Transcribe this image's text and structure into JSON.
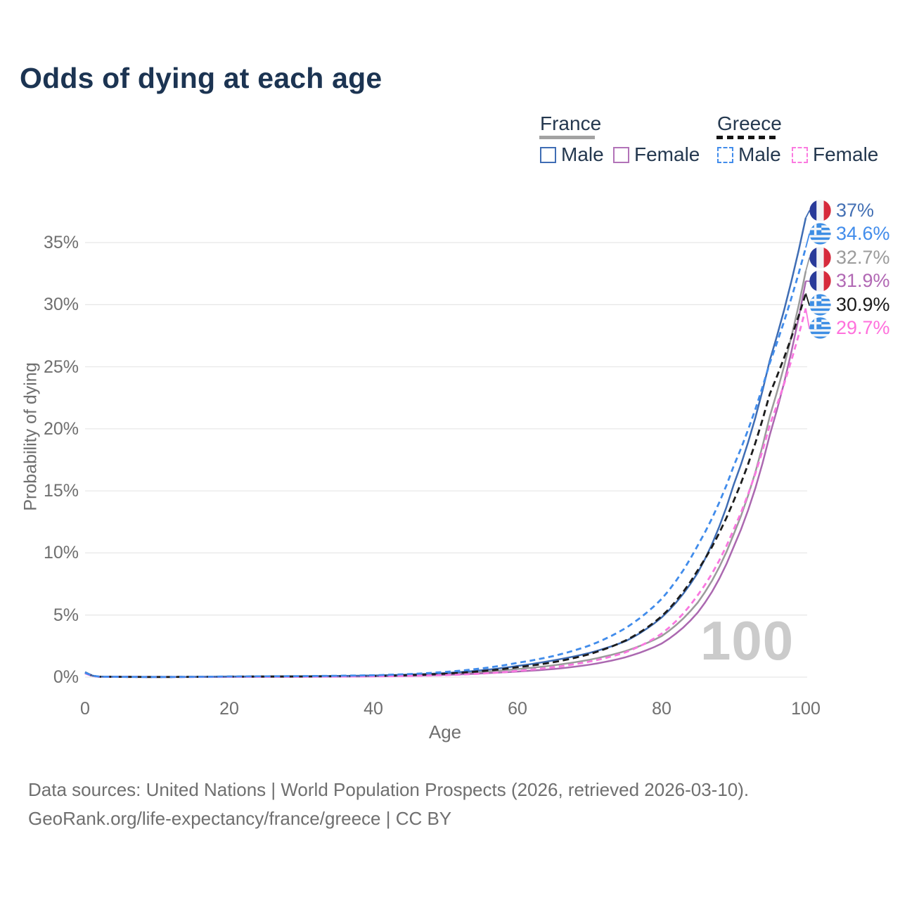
{
  "title": "Odds of dying at each age",
  "legend": {
    "groups": [
      {
        "label": "France",
        "line_style": "solid",
        "underline_color": "#a2a2a2",
        "items": [
          {
            "label": "Male",
            "color": "#3f6db4"
          },
          {
            "label": "Female",
            "color": "#b273b8"
          }
        ]
      },
      {
        "label": "Greece",
        "line_style": "dashed",
        "underline_color": "#141414",
        "items": [
          {
            "label": "Male",
            "color": "#418ceb"
          },
          {
            "label": "Female",
            "color": "#fb7ae0"
          }
        ]
      }
    ]
  },
  "chart": {
    "ylabel": "Probability of dying",
    "xlabel": "Age",
    "y_ticks": [
      "0%",
      "5%",
      "10%",
      "15%",
      "20%",
      "25%",
      "30%",
      "35%"
    ],
    "x_ticks": [
      "0",
      "20",
      "40",
      "60",
      "80",
      "100"
    ],
    "watermark": "100"
  },
  "chart_data": {
    "type": "line",
    "title": "Odds of dying at each age",
    "xlabel": "Age",
    "ylabel": "Probability of dying",
    "x_range": [
      0,
      100
    ],
    "y_range_percent": [
      0,
      35
    ],
    "y_gridlines_percent": [
      0,
      5,
      10,
      15,
      20,
      25,
      30,
      35
    ],
    "x_tick_ages": [
      0,
      20,
      40,
      60,
      80,
      100
    ],
    "grid": true,
    "legend_position": "top-right",
    "ages": [
      0,
      2,
      10,
      20,
      30,
      40,
      50,
      55,
      60,
      65,
      70,
      75,
      80,
      85,
      90,
      95,
      100
    ],
    "series": [
      {
        "id": "france-male",
        "name": "France — Male",
        "country": "France",
        "sex": "Male",
        "color": "#3f6db4",
        "label_color": "#4470b4",
        "dash": null,
        "end_label": "37%",
        "end_value_percent": 37.0,
        "values_percent": [
          0.4,
          0.04,
          0.01,
          0.05,
          0.07,
          0.13,
          0.33,
          0.55,
          0.9,
          1.35,
          1.95,
          2.9,
          4.8,
          8.4,
          15.5,
          25.5,
          37.0
        ]
      },
      {
        "id": "greece-male",
        "name": "Greece — Male",
        "country": "Greece",
        "sex": "Male",
        "color": "#418ceb",
        "label_color": "#418ceb",
        "dash": "8 5.5",
        "end_label": "34.6%",
        "end_value_percent": 34.6,
        "values_percent": [
          0.35,
          0.035,
          0.01,
          0.05,
          0.08,
          0.15,
          0.42,
          0.7,
          1.15,
          1.7,
          2.55,
          3.95,
          6.3,
          10.6,
          17.0,
          25.3,
          34.6
        ]
      },
      {
        "id": "france-total",
        "name": "France — Both sexes",
        "country": "France",
        "sex": "Both",
        "color": "#9b9b9b",
        "label_color": "#9b9b9b",
        "dash": null,
        "end_label": "32.7%",
        "end_value_percent": 32.7,
        "values_percent": [
          0.37,
          0.035,
          0.01,
          0.04,
          0.05,
          0.1,
          0.26,
          0.42,
          0.65,
          0.95,
          1.4,
          2.1,
          3.3,
          6.0,
          11.5,
          21.0,
          32.7
        ]
      },
      {
        "id": "france-female",
        "name": "France — Female",
        "country": "France",
        "sex": "Female",
        "color": "#ab68b0",
        "label_color": "#b168b4",
        "dash": null,
        "end_label": "31.9%",
        "end_value_percent": 31.9,
        "values_percent": [
          0.33,
          0.03,
          0.01,
          0.02,
          0.03,
          0.06,
          0.18,
          0.3,
          0.45,
          0.65,
          1.0,
          1.6,
          2.7,
          5.2,
          10.5,
          19.5,
          31.9
        ]
      },
      {
        "id": "greece-total",
        "name": "Greece — Both sexes",
        "country": "Greece",
        "sex": "Both",
        "color": "#1c1c1c",
        "label_color": "#191919",
        "dash": "9 5.5",
        "end_label": "30.9%",
        "end_value_percent": 30.9,
        "values_percent": [
          0.33,
          0.03,
          0.01,
          0.04,
          0.05,
          0.09,
          0.28,
          0.48,
          0.8,
          1.2,
          1.85,
          2.95,
          4.9,
          8.6,
          14.2,
          22.8,
          30.9
        ]
      },
      {
        "id": "greece-female",
        "name": "Greece — Female",
        "country": "Greece",
        "sex": "Female",
        "color": "#f977e0",
        "label_color": "#ff70dc",
        "dash": "8 5.5",
        "end_label": "29.7%",
        "end_value_percent": 29.7,
        "values_percent": [
          0.3,
          0.028,
          0.01,
          0.02,
          0.03,
          0.06,
          0.16,
          0.28,
          0.5,
          0.8,
          1.25,
          2.0,
          3.5,
          6.6,
          11.9,
          20.3,
          29.7
        ]
      }
    ]
  },
  "footer": {
    "line1": "Data sources: United Nations | World Population Prospects (2026, retrieved 2026-03-10).",
    "line2": "GeoRank.org/life-expectancy/france/greece | CC BY"
  }
}
